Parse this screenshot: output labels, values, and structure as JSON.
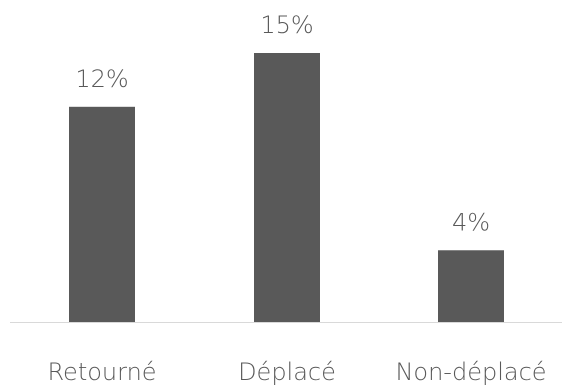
{
  "chart_data": {
    "type": "bar",
    "categories": [
      "Retourné",
      "Déplacé",
      "Non-déplacé"
    ],
    "values": [
      12,
      15,
      4
    ],
    "data_labels": [
      "12%",
      "15%",
      "4%"
    ],
    "unit": "%",
    "title": "",
    "xlabel": "",
    "ylabel": "",
    "ylim": [
      0,
      15
    ],
    "grid": false,
    "legend": "none",
    "colors": {
      "bar": "#595959",
      "text": "#595959",
      "axis": "#d9d9d9"
    }
  }
}
